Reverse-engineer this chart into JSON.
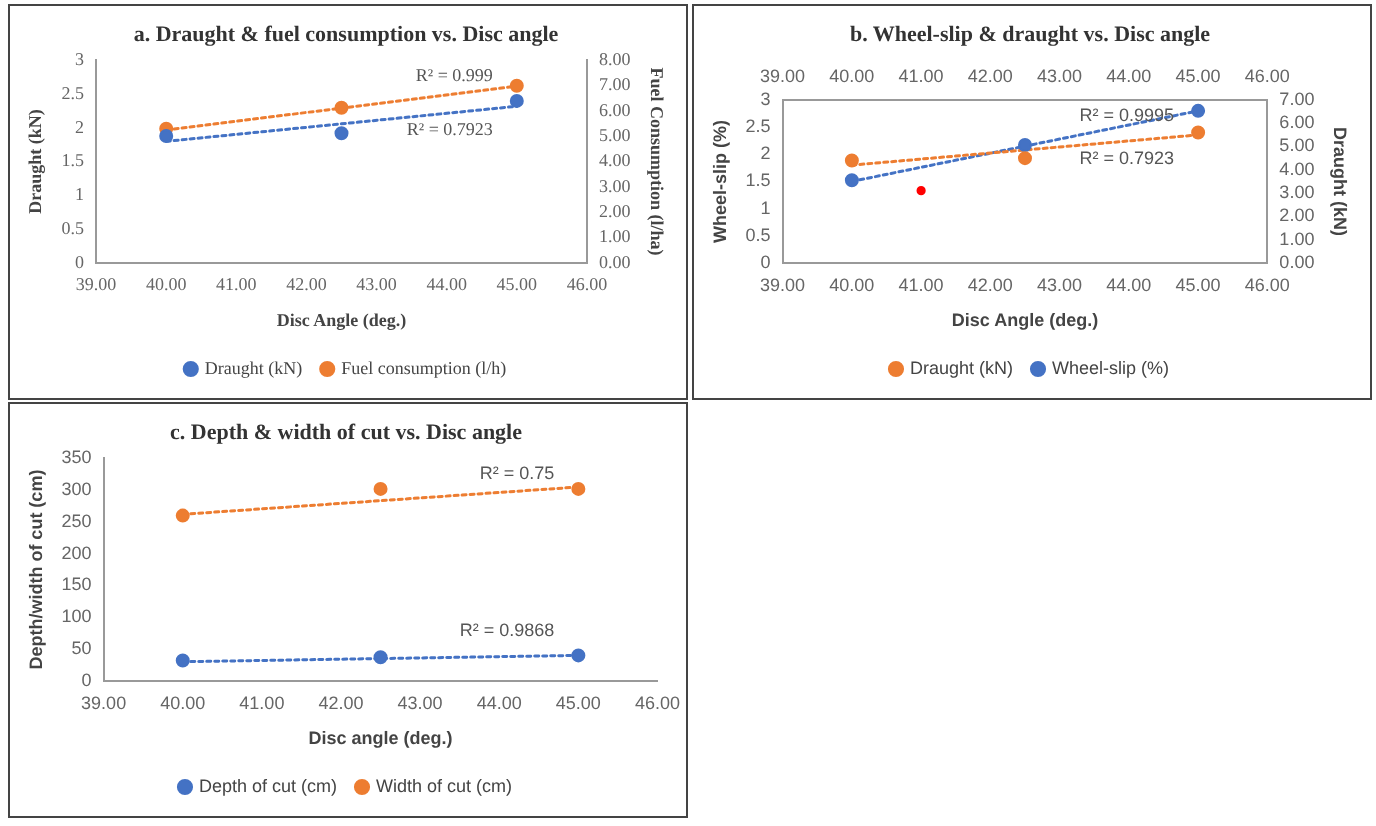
{
  "chart_data": [
    {
      "type": "scatter",
      "title": "a. Draught & fuel consumption vs. Disc angle",
      "xlabel": "Disc Angle (deg.)",
      "ylabel": "Draught (kN)",
      "y2label": "Fuel Consumption (l/ha)",
      "legend": "bottom",
      "marker": "circle",
      "xlim": [
        39,
        46
      ],
      "xticks": [
        {
          "value": 39,
          "label": "39.00"
        },
        {
          "value": 40,
          "label": "40.00"
        },
        {
          "value": 41,
          "label": "41.00"
        },
        {
          "value": 42,
          "label": "42.00"
        },
        {
          "value": 43,
          "label": "43.00"
        },
        {
          "value": 44,
          "label": "44.00"
        },
        {
          "value": 45,
          "label": "45.00"
        },
        {
          "value": 46,
          "label": "46.00"
        }
      ],
      "ylim": [
        0,
        3
      ],
      "yticks": [
        0,
        0.5,
        1,
        1.5,
        2,
        2.5,
        3
      ],
      "y2lim": [
        0,
        8
      ],
      "y2ticks": [
        {
          "value": 0,
          "label": "0.00"
        },
        {
          "value": 1,
          "label": "1.00"
        },
        {
          "value": 2,
          "label": "2.00"
        },
        {
          "value": 3,
          "label": "3.00"
        },
        {
          "value": 4,
          "label": "4.00"
        },
        {
          "value": 5,
          "label": "5.00"
        },
        {
          "value": 6,
          "label": "6.00"
        },
        {
          "value": 7,
          "label": "7.00"
        },
        {
          "value": 8,
          "label": "8.00"
        }
      ],
      "series": [
        {
          "name": "Draught (kN)",
          "color": "#4472c4",
          "x": [
            40,
            42.5,
            45
          ],
          "values": [
            1.88,
            1.92,
            2.4
          ]
        },
        {
          "name": "Fuel consumption (l/h)",
          "color": "#ed7d31",
          "x": [
            40,
            42.5,
            45
          ],
          "values": [
            5.3,
            6.13,
            7.0
          ],
          "axis": "y2"
        },
        {
          "type": "line",
          "color": "#4472c4",
          "x": [
            40,
            45
          ],
          "values": [
            1.8,
            2.32
          ],
          "marker": "none",
          "line_style": "dotted"
        },
        {
          "type": "line",
          "color": "#ed7d31",
          "x": [
            40,
            45
          ],
          "values": [
            5.25,
            6.98
          ],
          "marker": "none",
          "line_style": "dotted",
          "axis": "y2"
        }
      ],
      "annotations": [
        "R² = 0.7923",
        "R² = 0.999"
      ]
    },
    {
      "type": "scatter",
      "title": "b. Wheel-slip & draught vs. Disc angle",
      "xlabel": "Disc Angle (deg.)",
      "ylabel": "Wheel-slip (%)",
      "y2label": "Draught (kN)",
      "legend": "bottom",
      "marker": "circle",
      "xlim": [
        39,
        46
      ],
      "xticks": [
        {
          "value": 39,
          "label": "39.00"
        },
        {
          "value": 40,
          "label": "40.00"
        },
        {
          "value": 41,
          "label": "41.00"
        },
        {
          "value": 42,
          "label": "42.00"
        },
        {
          "value": 43,
          "label": "43.00"
        },
        {
          "value": 44,
          "label": "44.00"
        },
        {
          "value": 45,
          "label": "45.00"
        },
        {
          "value": 46,
          "label": "46.00"
        }
      ],
      "x2lim": [
        39,
        46
      ],
      "x2ticks": [
        {
          "value": 39,
          "label": "39.00"
        },
        {
          "value": 40,
          "label": "40.00"
        },
        {
          "value": 41,
          "label": "41.00"
        },
        {
          "value": 42,
          "label": "42.00"
        },
        {
          "value": 43,
          "label": "43.00"
        },
        {
          "value": 44,
          "label": "44.00"
        },
        {
          "value": 45,
          "label": "45.00"
        },
        {
          "value": 46,
          "label": "46.00"
        }
      ],
      "ylim": [
        0,
        3
      ],
      "yticks": [
        0,
        0.5,
        1,
        1.5,
        2,
        2.5,
        3
      ],
      "y2lim": [
        0,
        7
      ],
      "y2ticks": [
        {
          "value": 0,
          "label": "0.00"
        },
        {
          "value": 1,
          "label": "1.00"
        },
        {
          "value": 2,
          "label": "2.00"
        },
        {
          "value": 3,
          "label": "3.00"
        },
        {
          "value": 4,
          "label": "4.00"
        },
        {
          "value": 5,
          "label": "5.00"
        },
        {
          "value": 6,
          "label": "6.00"
        },
        {
          "value": 7,
          "label": "7.00"
        }
      ],
      "series": [
        {
          "name": "Draught (kN)",
          "color": "#ed7d31",
          "x": [
            40,
            42.5,
            45
          ],
          "values": [
            4.4,
            4.5,
            5.6
          ],
          "axis": "y2"
        },
        {
          "name": "Wheel-slip (%)",
          "color": "#4472c4",
          "x": [
            40,
            42.5,
            45
          ],
          "values": [
            1.52,
            2.17,
            2.8
          ]
        },
        {
          "color": "#ff0000",
          "x": [
            41
          ],
          "values": [
            1.33
          ]
        },
        {
          "type": "line",
          "color": "#ed7d31",
          "x": [
            40,
            45
          ],
          "values": [
            4.2,
            5.5
          ],
          "marker": "none",
          "line_style": "dotted",
          "axis": "y2"
        },
        {
          "type": "line",
          "color": "#4472c4",
          "x": [
            40,
            45
          ],
          "values": [
            1.5,
            2.8
          ],
          "marker": "none",
          "line_style": "dotted"
        }
      ],
      "annotations": [
        "R² = 0.7923",
        "R² = 0.9995"
      ]
    },
    {
      "type": "scatter",
      "title": "c. Depth & width of cut vs. Disc angle",
      "xlabel": "Disc angle (deg.)",
      "ylabel": "Depth/width of cut (cm)",
      "legend": "bottom",
      "marker": "circle",
      "xlim": [
        39,
        46
      ],
      "xticks": [
        {
          "value": 39,
          "label": "39.00"
        },
        {
          "value": 40,
          "label": "40.00"
        },
        {
          "value": 41,
          "label": "41.00"
        },
        {
          "value": 42,
          "label": "42.00"
        },
        {
          "value": 43,
          "label": "43.00"
        },
        {
          "value": 44,
          "label": "44.00"
        },
        {
          "value": 45,
          "label": "45.00"
        },
        {
          "value": 46,
          "label": "46.00"
        }
      ],
      "ylim": [
        0,
        350
      ],
      "yticks": [
        0,
        50,
        100,
        150,
        200,
        250,
        300,
        350
      ],
      "series": [
        {
          "name": "Depth of cut (cm)",
          "color": "#4472c4",
          "x": [
            40,
            42.5,
            45
          ],
          "values": [
            32,
            37,
            40
          ]
        },
        {
          "name": "Width of cut (cm)",
          "color": "#ed7d31",
          "x": [
            40,
            42.5,
            45
          ],
          "values": [
            260,
            302,
            302
          ]
        },
        {
          "type": "line",
          "color": "#4472c4",
          "x": [
            40,
            45
          ],
          "values": [
            30,
            40
          ],
          "marker": "none",
          "line_style": "dotted"
        },
        {
          "type": "line",
          "color": "#ed7d31",
          "x": [
            40,
            45
          ],
          "values": [
            262,
            305
          ],
          "marker": "none",
          "line_style": "dotted"
        }
      ],
      "annotations": [
        "R² = 0.9868",
        "R² = 0.75"
      ]
    }
  ]
}
